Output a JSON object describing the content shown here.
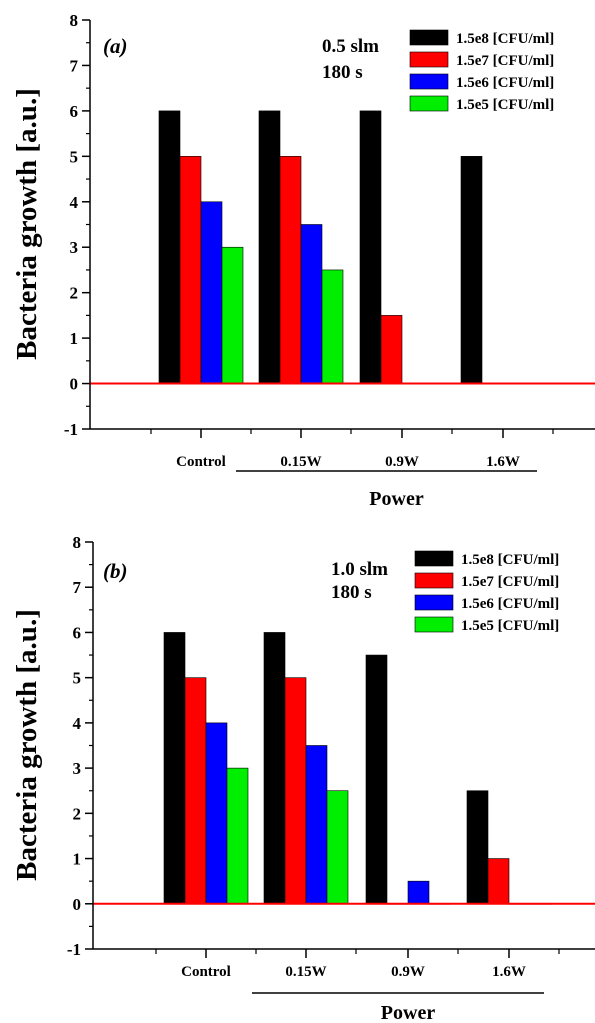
{
  "chart_data": [
    {
      "type": "bar",
      "panel_label": "(a)",
      "annotations": [
        "0.5 slm",
        "180 s"
      ],
      "categories": [
        "Control",
        "0.15W",
        "0.9W",
        "1.6W"
      ],
      "series": [
        {
          "name": "1.5e8 [CFU/ml]",
          "color": "#000000",
          "values": [
            6,
            6,
            6,
            5
          ]
        },
        {
          "name": "1.5e7 [CFU/ml]",
          "color": "#ff0000",
          "values": [
            5,
            5,
            1.5,
            0
          ]
        },
        {
          "name": "1.5e6 [CFU/ml]",
          "color": "#0000ff",
          "values": [
            4,
            3.5,
            0,
            0
          ]
        },
        {
          "name": "1.5e5 [CFU/ml]",
          "color": "#00ee00",
          "values": [
            3,
            2.5,
            0,
            0
          ]
        }
      ],
      "xlabel": "Power",
      "ylabel": "Bacteria growth [a.u.]",
      "ylim": [
        -1,
        8
      ],
      "yticks": [
        "-1",
        "0",
        "1",
        "2",
        "3",
        "4",
        "5",
        "6",
        "7",
        "8"
      ],
      "reference_line": {
        "y": 0,
        "color": "#ff0000"
      },
      "legend_position": "top-right",
      "grid": false
    },
    {
      "type": "bar",
      "panel_label": "(b)",
      "annotations": [
        "1.0 slm",
        "180 s"
      ],
      "categories": [
        "Control",
        "0.15W",
        "0.9W",
        "1.6W"
      ],
      "series": [
        {
          "name": "1.5e8 [CFU/ml]",
          "color": "#000000",
          "values": [
            6,
            6,
            5.5,
            2.5
          ]
        },
        {
          "name": "1.5e7 [CFU/ml]",
          "color": "#ff0000",
          "values": [
            5,
            5,
            0,
            1
          ]
        },
        {
          "name": "1.5e6 [CFU/ml]",
          "color": "#0000ff",
          "values": [
            4,
            3.5,
            0.5,
            0
          ]
        },
        {
          "name": "1.5e5 [CFU/ml]",
          "color": "#00ee00",
          "values": [
            3,
            2.5,
            0,
            0
          ]
        }
      ],
      "xlabel": "Power",
      "ylabel": "Bacteria growth [a.u.]",
      "ylim": [
        -1,
        8
      ],
      "yticks": [
        "-1",
        "0",
        "1",
        "2",
        "3",
        "4",
        "5",
        "6",
        "7",
        "8"
      ],
      "reference_line": {
        "y": 0,
        "color": "#ff0000"
      },
      "legend_position": "top-right",
      "grid": false
    }
  ]
}
